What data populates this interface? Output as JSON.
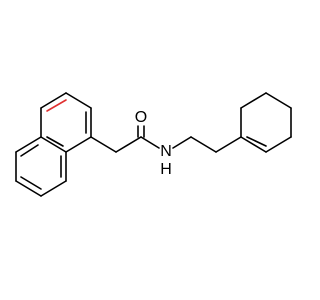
{
  "labels": {
    "oxygen": "O",
    "nitrogen": "N",
    "hydrogen": "H"
  }
}
